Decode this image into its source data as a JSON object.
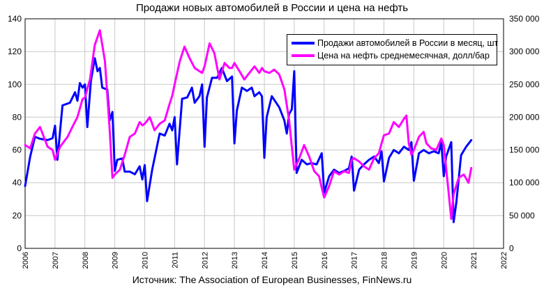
{
  "chart_data": {
    "type": "line",
    "title": "Продажи новых автомобилей в России и цена на нефть",
    "source": "Источник: The Association of European Businesses, FinNews.ru",
    "x_ticks": [
      "2006",
      "2007",
      "2008",
      "2009",
      "2010",
      "2011",
      "2012",
      "2013",
      "2014",
      "2015",
      "2016",
      "2017",
      "2018",
      "2019",
      "2020",
      "2021",
      "2022"
    ],
    "xlim": [
      2006,
      2022
    ],
    "y_left": {
      "ylim": [
        0,
        140
      ],
      "ticks": [
        "0",
        "20",
        "40",
        "60",
        "80",
        "100",
        "120",
        "140"
      ]
    },
    "y_right": {
      "ylim": [
        0,
        350000
      ],
      "ticks": [
        "0",
        "50 000",
        "100 000",
        "150 000",
        "200 000",
        "250 000",
        "300 000",
        "350 000"
      ]
    },
    "grid": true,
    "legend_position": "top-right",
    "series": [
      {
        "name": "Продажи автомобилей в России в месяц, шт",
        "axis": "right",
        "color": "#0000ff",
        "points": [
          [
            2006.0,
            95000
          ],
          [
            2006.17,
            140000
          ],
          [
            2006.33,
            170000
          ],
          [
            2006.5,
            167000
          ],
          [
            2006.75,
            165000
          ],
          [
            2006.92,
            168000
          ],
          [
            2007.0,
            187000
          ],
          [
            2007.08,
            135000
          ],
          [
            2007.25,
            218000
          ],
          [
            2007.5,
            222000
          ],
          [
            2007.67,
            238000
          ],
          [
            2007.75,
            225000
          ],
          [
            2007.83,
            252000
          ],
          [
            2007.92,
            245000
          ],
          [
            2008.0,
            250000
          ],
          [
            2008.08,
            185000
          ],
          [
            2008.2,
            255000
          ],
          [
            2008.33,
            290000
          ],
          [
            2008.42,
            270000
          ],
          [
            2008.5,
            275000
          ],
          [
            2008.58,
            245000
          ],
          [
            2008.75,
            242000
          ],
          [
            2008.83,
            195000
          ],
          [
            2008.92,
            208000
          ],
          [
            2009.0,
            118000
          ],
          [
            2009.08,
            135000
          ],
          [
            2009.25,
            137000
          ],
          [
            2009.33,
            117000
          ],
          [
            2009.5,
            117000
          ],
          [
            2009.67,
            113000
          ],
          [
            2009.83,
            125000
          ],
          [
            2009.92,
            105000
          ],
          [
            2010.0,
            127000
          ],
          [
            2010.08,
            72000
          ],
          [
            2010.25,
            120000
          ],
          [
            2010.5,
            175000
          ],
          [
            2010.67,
            172000
          ],
          [
            2010.83,
            190000
          ],
          [
            2010.92,
            180000
          ],
          [
            2011.0,
            200000
          ],
          [
            2011.08,
            128000
          ],
          [
            2011.25,
            228000
          ],
          [
            2011.42,
            230000
          ],
          [
            2011.58,
            245000
          ],
          [
            2011.67,
            222000
          ],
          [
            2011.83,
            232000
          ],
          [
            2011.92,
            250000
          ],
          [
            2012.0,
            155000
          ],
          [
            2012.08,
            230000
          ],
          [
            2012.25,
            260000
          ],
          [
            2012.42,
            260000
          ],
          [
            2012.58,
            275000
          ],
          [
            2012.75,
            255000
          ],
          [
            2012.92,
            262000
          ],
          [
            2013.0,
            160000
          ],
          [
            2013.08,
            210000
          ],
          [
            2013.25,
            245000
          ],
          [
            2013.42,
            240000
          ],
          [
            2013.58,
            245000
          ],
          [
            2013.67,
            232000
          ],
          [
            2013.83,
            238000
          ],
          [
            2013.92,
            232000
          ],
          [
            2014.0,
            138000
          ],
          [
            2014.08,
            200000
          ],
          [
            2014.25,
            232000
          ],
          [
            2014.5,
            215000
          ],
          [
            2014.67,
            195000
          ],
          [
            2014.75,
            175000
          ],
          [
            2014.83,
            205000
          ],
          [
            2014.92,
            212000
          ],
          [
            2015.0,
            270000
          ],
          [
            2015.08,
            115000
          ],
          [
            2015.25,
            135000
          ],
          [
            2015.42,
            128000
          ],
          [
            2015.58,
            130000
          ],
          [
            2015.75,
            128000
          ],
          [
            2015.92,
            145000
          ],
          [
            2016.0,
            85000
          ],
          [
            2016.17,
            110000
          ],
          [
            2016.33,
            120000
          ],
          [
            2016.5,
            115000
          ],
          [
            2016.67,
            118000
          ],
          [
            2016.83,
            122000
          ],
          [
            2016.92,
            140000
          ],
          [
            2017.0,
            88000
          ],
          [
            2017.17,
            120000
          ],
          [
            2017.33,
            128000
          ],
          [
            2017.5,
            135000
          ],
          [
            2017.67,
            140000
          ],
          [
            2017.83,
            130000
          ],
          [
            2017.92,
            148000
          ],
          [
            2018.0,
            102000
          ],
          [
            2018.17,
            138000
          ],
          [
            2018.33,
            150000
          ],
          [
            2018.5,
            145000
          ],
          [
            2018.67,
            155000
          ],
          [
            2018.83,
            150000
          ],
          [
            2018.92,
            162000
          ],
          [
            2019.0,
            103000
          ],
          [
            2019.17,
            145000
          ],
          [
            2019.33,
            150000
          ],
          [
            2019.5,
            145000
          ],
          [
            2019.67,
            148000
          ],
          [
            2019.83,
            145000
          ],
          [
            2019.92,
            162000
          ],
          [
            2020.0,
            110000
          ],
          [
            2020.08,
            140000
          ],
          [
            2020.25,
            162000
          ],
          [
            2020.33,
            40000
          ],
          [
            2020.42,
            70000
          ],
          [
            2020.58,
            142000
          ],
          [
            2020.75,
            155000
          ],
          [
            2020.92,
            165000
          ]
        ]
      },
      {
        "name": "Цена на нефть среднемесячная, долл/бар",
        "axis": "left",
        "color": "#ff00ff",
        "points": [
          [
            2006.0,
            63
          ],
          [
            2006.17,
            61
          ],
          [
            2006.33,
            70
          ],
          [
            2006.5,
            74
          ],
          [
            2006.75,
            62
          ],
          [
            2006.92,
            60
          ],
          [
            2007.0,
            54
          ],
          [
            2007.17,
            62
          ],
          [
            2007.42,
            68
          ],
          [
            2007.58,
            74
          ],
          [
            2007.75,
            80
          ],
          [
            2007.92,
            91
          ],
          [
            2008.0,
            92
          ],
          [
            2008.17,
            103
          ],
          [
            2008.33,
            124
          ],
          [
            2008.5,
            133
          ],
          [
            2008.67,
            114
          ],
          [
            2008.83,
            72
          ],
          [
            2008.92,
            43
          ],
          [
            2009.0,
            45
          ],
          [
            2009.17,
            48
          ],
          [
            2009.33,
            57
          ],
          [
            2009.5,
            68
          ],
          [
            2009.67,
            70
          ],
          [
            2009.83,
            77
          ],
          [
            2009.92,
            75
          ],
          [
            2010.0,
            76
          ],
          [
            2010.17,
            80
          ],
          [
            2010.33,
            72
          ],
          [
            2010.5,
            76
          ],
          [
            2010.67,
            78
          ],
          [
            2010.83,
            88
          ],
          [
            2010.92,
            93
          ],
          [
            2011.0,
            100
          ],
          [
            2011.17,
            114
          ],
          [
            2011.33,
            123
          ],
          [
            2011.5,
            116
          ],
          [
            2011.67,
            110
          ],
          [
            2011.83,
            108
          ],
          [
            2011.92,
            107
          ],
          [
            2012.0,
            111
          ],
          [
            2012.17,
            125
          ],
          [
            2012.33,
            119
          ],
          [
            2012.5,
            103
          ],
          [
            2012.67,
            113
          ],
          [
            2012.83,
            110
          ],
          [
            2012.92,
            110
          ],
          [
            2013.0,
            113
          ],
          [
            2013.17,
            108
          ],
          [
            2013.33,
            103
          ],
          [
            2013.5,
            107
          ],
          [
            2013.67,
            111
          ],
          [
            2013.83,
            107
          ],
          [
            2013.92,
            110
          ],
          [
            2014.0,
            108
          ],
          [
            2014.17,
            107
          ],
          [
            2014.33,
            109
          ],
          [
            2014.5,
            106
          ],
          [
            2014.67,
            97
          ],
          [
            2014.83,
            78
          ],
          [
            2014.92,
            62
          ],
          [
            2015.0,
            48
          ],
          [
            2015.17,
            55
          ],
          [
            2015.33,
            63
          ],
          [
            2015.5,
            56
          ],
          [
            2015.67,
            47
          ],
          [
            2015.83,
            44
          ],
          [
            2015.92,
            37
          ],
          [
            2016.0,
            31
          ],
          [
            2016.17,
            38
          ],
          [
            2016.33,
            47
          ],
          [
            2016.5,
            45
          ],
          [
            2016.67,
            47
          ],
          [
            2016.83,
            46
          ],
          [
            2016.92,
            54
          ],
          [
            2017.0,
            55
          ],
          [
            2017.17,
            53
          ],
          [
            2017.33,
            50
          ],
          [
            2017.5,
            48
          ],
          [
            2017.67,
            55
          ],
          [
            2017.83,
            58
          ],
          [
            2017.92,
            64
          ],
          [
            2018.0,
            69
          ],
          [
            2018.17,
            70
          ],
          [
            2018.33,
            77
          ],
          [
            2018.5,
            74
          ],
          [
            2018.67,
            79
          ],
          [
            2018.75,
            81
          ],
          [
            2018.83,
            64
          ],
          [
            2018.92,
            57
          ],
          [
            2019.0,
            60
          ],
          [
            2019.17,
            68
          ],
          [
            2019.33,
            71
          ],
          [
            2019.42,
            64
          ],
          [
            2019.58,
            61
          ],
          [
            2019.75,
            60
          ],
          [
            2019.92,
            67
          ],
          [
            2020.0,
            63
          ],
          [
            2020.17,
            33
          ],
          [
            2020.25,
            18
          ],
          [
            2020.33,
            33
          ],
          [
            2020.5,
            43
          ],
          [
            2020.67,
            45
          ],
          [
            2020.83,
            40
          ],
          [
            2020.92,
            49
          ]
        ]
      }
    ]
  }
}
